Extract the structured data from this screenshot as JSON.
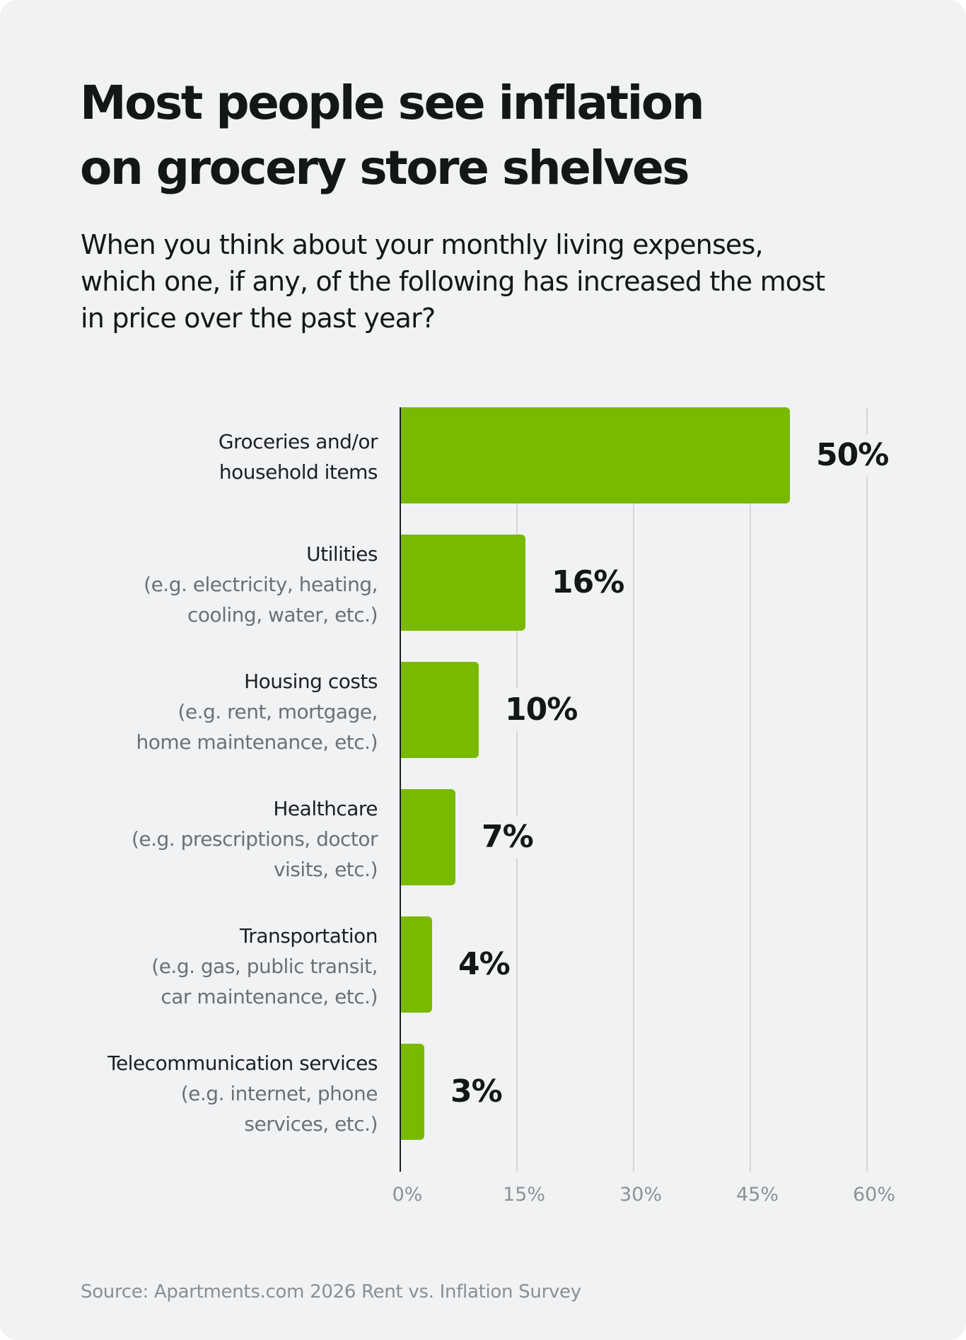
{
  "header": {
    "title_line1": "Most people see inflation",
    "title_line2": "on grocery store shelves",
    "subtitle": "When you think about your monthly living expenses, which one, if any, of the following has increased the most in price over the past year?"
  },
  "colors": {
    "bar": "#79b900",
    "background": "#f1f2f4",
    "text": "#141718",
    "subtext": "#6b7173",
    "grid": "#d4d6d8"
  },
  "chart_data": {
    "type": "bar",
    "orientation": "horizontal",
    "title": "Most people see inflation on grocery store shelves",
    "subtitle": "When you think about your monthly living expenses, which one, if any, of the following has increased the most in price over the past year?",
    "categories": [
      "Groceries and/or household items",
      "Utilities",
      "Housing costs",
      "Healthcare",
      "Transportation",
      "Telecommunication services"
    ],
    "category_notes": [
      "",
      "(e.g. electricity, heating, cooling, water, etc.)",
      "(e.g. rent, mortgage, home maintenance, etc.)",
      "(e.g. prescriptions, doctor visits, etc.)",
      "(e.g. gas, public transit, car maintenance, etc.)",
      "(e.g. internet, phone services, etc.)"
    ],
    "values": [
      50,
      16,
      10,
      7,
      4,
      3
    ],
    "value_labels": [
      "50%",
      "16%",
      "10%",
      "7%",
      "4%",
      "3%"
    ],
    "xlabel": "",
    "ylabel": "",
    "xlim": [
      0,
      60
    ],
    "xticks": [
      "0%",
      "15%",
      "30%",
      "45%",
      "60%"
    ],
    "grid": true,
    "legend": "none",
    "source": "Source: Apartments.com 2026 Rent vs. Inflation Survey"
  },
  "labels": [
    {
      "main_line1": "Groceries and/or",
      "main_line2": "household items",
      "sub_line1": "",
      "sub_line2": ""
    },
    {
      "main_line1": "Utilities",
      "main_line2": "",
      "sub_line1": "(e.g. electricity, heating,",
      "sub_line2": "cooling, water, etc.)"
    },
    {
      "main_line1": "Housing costs",
      "main_line2": "",
      "sub_line1": "(e.g. rent, mortgage,",
      "sub_line2": "home maintenance, etc.)"
    },
    {
      "main_line1": "Healthcare",
      "main_line2": "",
      "sub_line1": "(e.g. prescriptions, doctor",
      "sub_line2": "visits, etc.)"
    },
    {
      "main_line1": "Transportation",
      "main_line2": "",
      "sub_line1": "(e.g. gas, public transit,",
      "sub_line2": "car maintenance, etc.)"
    },
    {
      "main_line1": "Telecommunication services",
      "main_line2": "",
      "sub_line1": "(e.g. internet, phone",
      "sub_line2": "services, etc.)"
    }
  ],
  "footer": {
    "source": "Source: Apartments.com 2026 Rent vs. Inflation Survey"
  }
}
